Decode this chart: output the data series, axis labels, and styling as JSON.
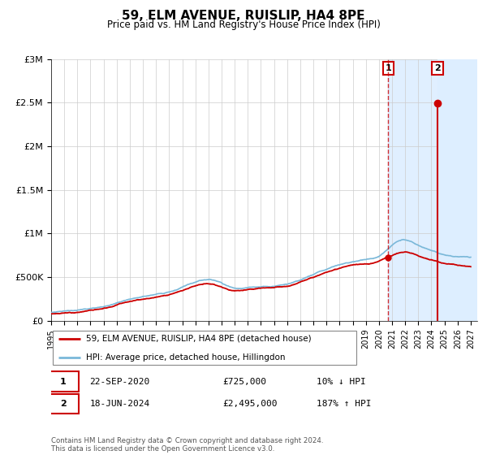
{
  "title": "59, ELM AVENUE, RUISLIP, HA4 8PE",
  "subtitle": "Price paid vs. HM Land Registry's House Price Index (HPI)",
  "ylabel_ticks": [
    "£0",
    "£500K",
    "£1M",
    "£1.5M",
    "£2M",
    "£2.5M",
    "£3M"
  ],
  "ytick_values": [
    0,
    500000,
    1000000,
    1500000,
    2000000,
    2500000,
    3000000
  ],
  "ylim": [
    0,
    3000000
  ],
  "xlim_start": 1995.0,
  "xlim_end": 2027.5,
  "legend_line1": "59, ELM AVENUE, RUISLIP, HA4 8PE (detached house)",
  "legend_line2": "HPI: Average price, detached house, Hillingdon",
  "annotation1_date": "22-SEP-2020",
  "annotation1_price": "£725,000",
  "annotation1_hpi": "10% ↓ HPI",
  "annotation2_date": "18-JUN-2024",
  "annotation2_price": "£2,495,000",
  "annotation2_hpi": "187% ↑ HPI",
  "point1_x": 2020.72,
  "point1_y": 725000,
  "point2_x": 2024.46,
  "point2_y": 2495000,
  "hpi_line_color": "#7ab8d9",
  "sale_line_color": "#cc0000",
  "point_color": "#cc0000",
  "shaded_region_color": "#ddeeff",
  "footer_text": "Contains HM Land Registry data © Crown copyright and database right 2024.\nThis data is licensed under the Open Government Licence v3.0.",
  "background_color": "#ffffff",
  "grid_color": "#cccccc",
  "hpi_waypoints_x": [
    1995,
    1997,
    1999,
    2001,
    2003,
    2005,
    2007,
    2008,
    2009,
    2010,
    2011,
    2012,
    2013,
    2014,
    2015,
    2016,
    2017,
    2018,
    2019,
    2020,
    2021,
    2022,
    2023,
    2024,
    2025,
    2026,
    2027
  ],
  "hpi_waypoints_y": [
    95000,
    115000,
    155000,
    230000,
    290000,
    370000,
    460000,
    430000,
    380000,
    390000,
    400000,
    410000,
    430000,
    470000,
    530000,
    590000,
    650000,
    680000,
    700000,
    730000,
    860000,
    930000,
    870000,
    820000,
    780000,
    760000,
    750000
  ],
  "sale_waypoints_x": [
    1995,
    1997,
    1999,
    2001,
    2003,
    2005,
    2007,
    2008,
    2009,
    2010,
    2011,
    2012,
    2013,
    2014,
    2015,
    2016,
    2017,
    2018,
    2019,
    2020,
    2021,
    2022,
    2023,
    2024,
    2025,
    2026,
    2027
  ],
  "sale_waypoints_y": [
    80000,
    100000,
    140000,
    210000,
    265000,
    340000,
    425000,
    395000,
    355000,
    365000,
    375000,
    385000,
    405000,
    445000,
    500000,
    555000,
    610000,
    645000,
    665000,
    690000,
    755000,
    790000,
    750000,
    700000,
    660000,
    640000,
    630000
  ]
}
